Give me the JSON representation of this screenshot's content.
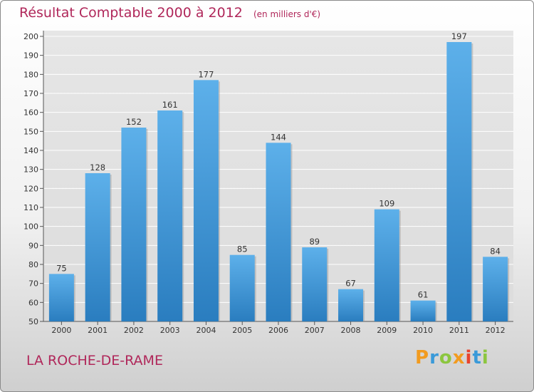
{
  "header": {
    "title": "Résultat Comptable 2000 à 2012",
    "unit": "(en milliers d'€)"
  },
  "footer": {
    "town": "LA ROCHE-DE-RAME",
    "logo": "Proxiti"
  },
  "colors": {
    "title": "#b0275a",
    "bar_top": "#5db0ea",
    "bar_bottom": "#2a7dbf"
  },
  "chart_data": {
    "type": "bar",
    "title": "Résultat Comptable 2000 à 2012",
    "subtitle": "(en milliers d'€)",
    "xlabel": "",
    "ylabel": "",
    "categories": [
      "2000",
      "2001",
      "2002",
      "2003",
      "2004",
      "2005",
      "2006",
      "2007",
      "2008",
      "2009",
      "2010",
      "2011",
      "2012"
    ],
    "values": [
      75,
      128,
      152,
      161,
      177,
      85,
      144,
      89,
      67,
      109,
      61,
      197,
      84
    ],
    "ylim": [
      50,
      200
    ],
    "yticks": [
      50,
      60,
      70,
      80,
      90,
      100,
      110,
      120,
      130,
      140,
      150,
      160,
      170,
      180,
      190,
      200
    ],
    "grid": true
  }
}
